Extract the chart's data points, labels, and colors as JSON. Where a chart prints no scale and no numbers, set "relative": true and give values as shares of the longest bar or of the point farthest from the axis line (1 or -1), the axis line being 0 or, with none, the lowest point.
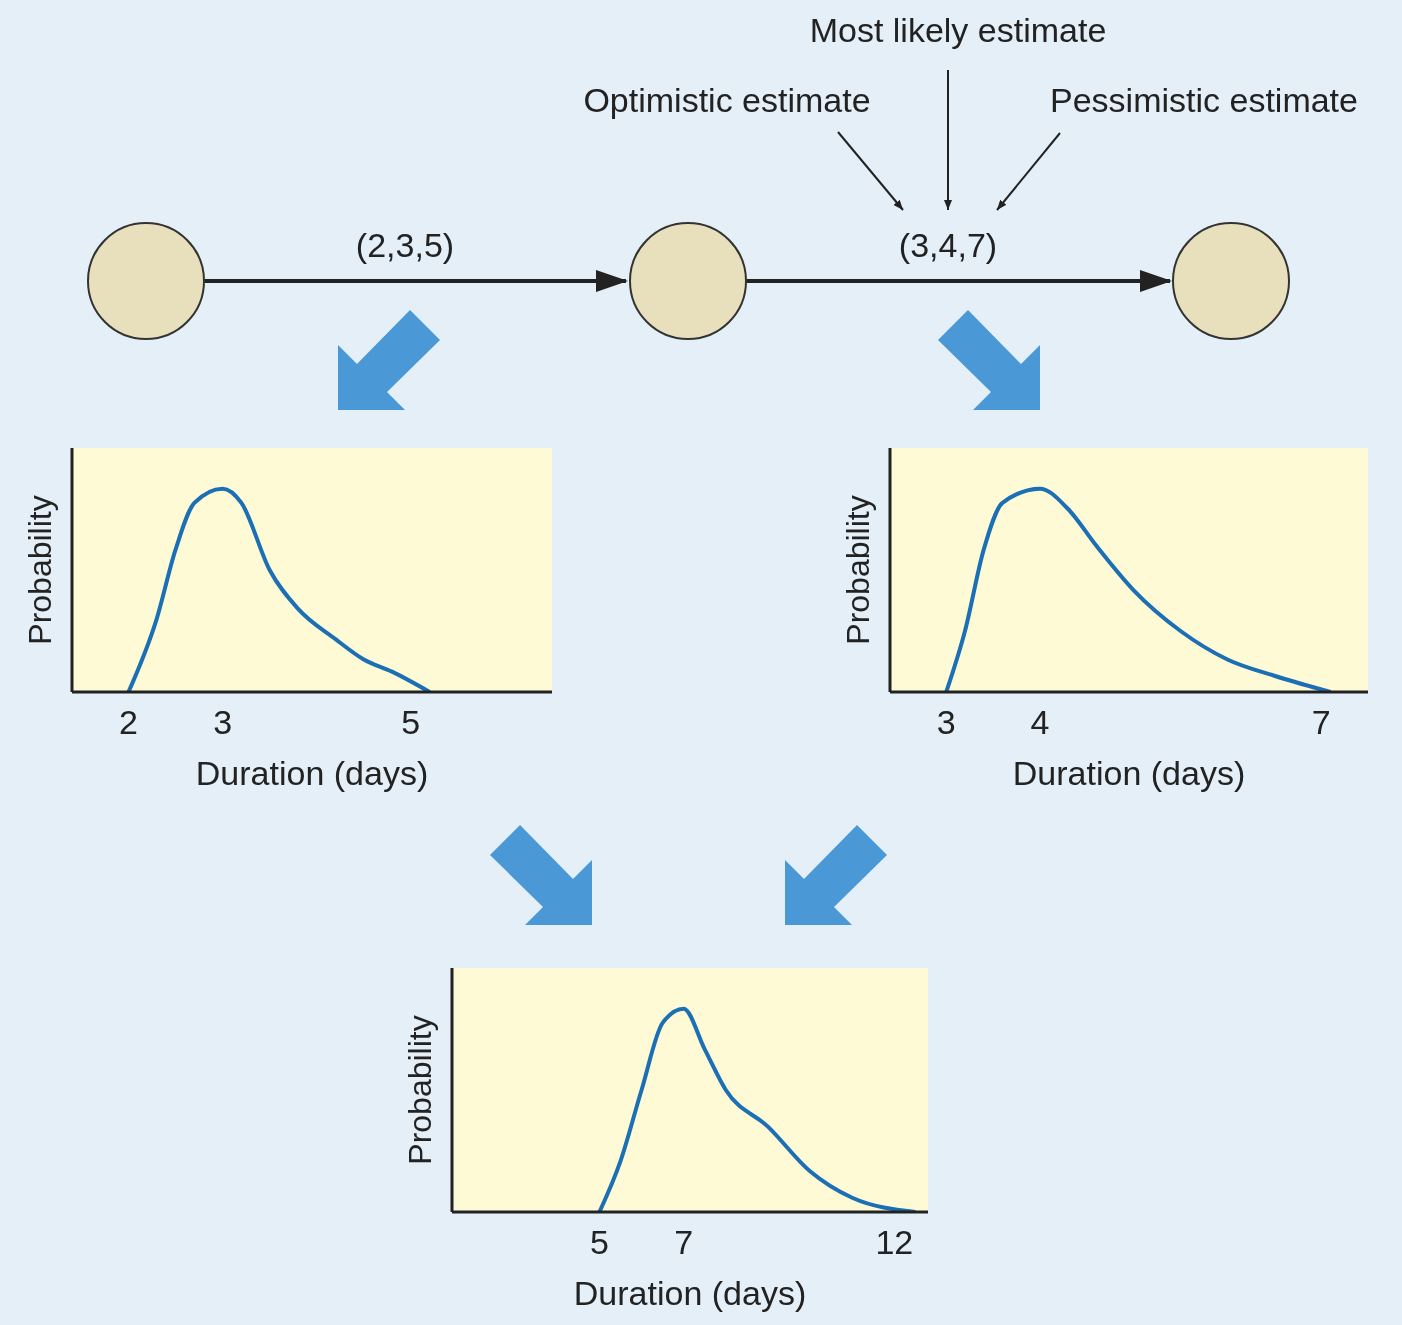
{
  "chart_data": [
    {
      "type": "other",
      "annotations": [
        "Most likely estimate",
        "Optimistic estimate",
        "Pessimistic estimate",
        "(2,3,5)",
        "(3,4,7)"
      ]
    },
    {
      "type": "line",
      "relative": true,
      "xlabel": "Duration (days)",
      "ylabel": "Probability",
      "color": "#1a6fb5",
      "xlim": [
        1.4,
        6.5
      ],
      "xticks": [
        2,
        3,
        5
      ],
      "x": [
        2,
        2.3,
        2.5,
        2.7,
        3,
        3.2,
        3.5,
        3.8,
        4.2,
        4.5,
        4.8,
        5.2
      ],
      "values": [
        0,
        0.36,
        0.7,
        0.93,
        1,
        0.93,
        0.6,
        0.41,
        0.26,
        0.16,
        0.1,
        0
      ]
    },
    {
      "type": "line",
      "relative": true,
      "xlabel": "Duration (days)",
      "ylabel": "Probability",
      "color": "#1a6fb5",
      "xlim": [
        2.4,
        7.5
      ],
      "xticks": [
        3,
        4,
        7
      ],
      "x": [
        3,
        3.2,
        3.4,
        3.6,
        4,
        4.3,
        4.6,
        5,
        5.5,
        6,
        6.5,
        7.1
      ],
      "values": [
        0,
        0.3,
        0.7,
        0.93,
        1,
        0.9,
        0.72,
        0.5,
        0.3,
        0.16,
        0.08,
        0
      ]
    },
    {
      "type": "line",
      "relative": true,
      "xlabel": "Duration (days)",
      "ylabel": "Probability",
      "color": "#1a6fb5",
      "xlim": [
        1.5,
        12.8
      ],
      "xticks": [
        5,
        7,
        12
      ],
      "x": [
        5,
        5.5,
        6,
        6.5,
        7,
        7.5,
        8,
        9,
        10,
        11,
        12.5
      ],
      "values": [
        0,
        0.25,
        0.6,
        0.93,
        1,
        0.8,
        0.6,
        0.42,
        0.2,
        0.07,
        0
      ]
    }
  ]
}
